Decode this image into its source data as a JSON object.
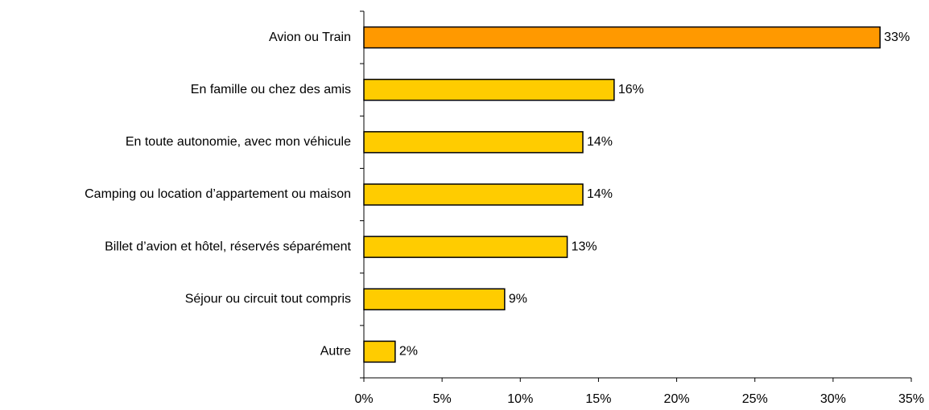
{
  "chart_data": {
    "type": "bar",
    "orientation": "horizontal",
    "categories": [
      "Avion ou Train",
      "En famille ou chez des amis",
      "En toute autonomie, avec mon véhicule",
      "Camping ou location d’appartement ou maison",
      "Billet d’avion et hôtel, réservés séparément",
      "Séjour ou circuit tout compris",
      "Autre"
    ],
    "values": [
      33,
      16,
      14,
      14,
      13,
      9,
      2
    ],
    "value_labels": [
      "33%",
      "16%",
      "14%",
      "14%",
      "13%",
      "9%",
      "2%"
    ],
    "colors": [
      "#ff9900",
      "#ffcc00",
      "#ffcc00",
      "#ffcc00",
      "#ffcc00",
      "#ffcc00",
      "#ffcc00"
    ],
    "xlim": [
      0,
      35
    ],
    "xticks": [
      {
        "value": 0,
        "label": "0%"
      },
      {
        "value": 5,
        "label": "5%"
      },
      {
        "value": 10,
        "label": "10%"
      },
      {
        "value": 15,
        "label": "15%"
      },
      {
        "value": 20,
        "label": "20%"
      },
      {
        "value": 25,
        "label": "25%"
      },
      {
        "value": 30,
        "label": "30%"
      },
      {
        "value": 35,
        "label": "35%"
      }
    ],
    "grid": false
  }
}
